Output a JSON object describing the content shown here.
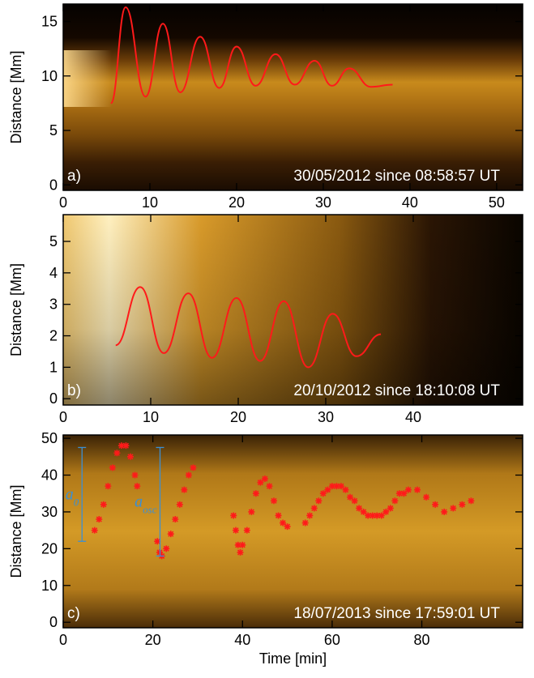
{
  "chart_data": [
    {
      "type": "line",
      "panel_label": "a)",
      "annotation": "30/05/2012 since 08:58:57 UT",
      "ylabel": "Distance [Mm]",
      "xlim": [
        0,
        53
      ],
      "ylim": [
        -0.5,
        16.6
      ],
      "xticks": [
        0,
        10,
        20,
        30,
        40,
        50
      ],
      "yticks": [
        0,
        5,
        10,
        15
      ],
      "series": [
        {
          "color": "#ff1a1a",
          "x": [
            5.5,
            7.2,
            9.5,
            11.5,
            13.5,
            15.8,
            18,
            20,
            22.2,
            24.5,
            26.7,
            29,
            31,
            33,
            35.5,
            38
          ],
          "values": [
            7.5,
            16.3,
            8.1,
            14.8,
            8.5,
            13.6,
            8.9,
            12.7,
            9.1,
            12,
            9.2,
            11.4,
            9.1,
            10.7,
            9,
            9.2
          ]
        }
      ]
    },
    {
      "type": "line",
      "panel_label": "b)",
      "annotation": "20/10/2012 since 18:10:08 UT",
      "ylabel": "Distance [Mm]",
      "xlim": [
        0,
        52.5
      ],
      "ylim": [
        -0.2,
        5.85
      ],
      "xticks": [
        0,
        10,
        20,
        30,
        40
      ],
      "yticks": [
        0,
        1,
        2,
        3,
        4,
        5
      ],
      "series": [
        {
          "color": "#ff1a1a",
          "x": [
            6,
            8.8,
            11.5,
            14.3,
            17,
            19.8,
            22.5,
            25.2,
            28,
            30.8,
            33.5,
            36.3
          ],
          "values": [
            1.7,
            3.55,
            1.45,
            3.35,
            1.3,
            3.2,
            1.2,
            3.1,
            1.0,
            2.7,
            1.35,
            2.05
          ]
        }
      ]
    },
    {
      "type": "scatter",
      "panel_label": "c)",
      "annotation": "18/07/2013 since 17:59:01 UT",
      "ylabel": "Distance [Mm]",
      "xlabel": "Time [min]",
      "xlim": [
        0,
        102.5
      ],
      "ylim": [
        -1.5,
        50.9
      ],
      "xticks": [
        0,
        20,
        40,
        60,
        80
      ],
      "yticks": [
        0,
        10,
        20,
        30,
        40,
        50
      ],
      "series": [
        {
          "color": "#ff1a1a",
          "x": [
            7,
            8,
            9,
            10,
            11,
            12,
            13,
            14,
            15,
            16,
            16.5,
            21,
            21.5,
            22,
            23,
            24,
            25,
            26,
            27,
            28,
            29,
            38,
            38.5,
            39,
            39.5,
            40,
            41,
            42,
            43,
            44,
            45,
            46,
            47,
            48,
            49,
            50,
            54,
            55,
            56,
            57,
            58,
            59,
            60,
            61,
            62,
            63,
            64,
            65,
            66,
            67,
            68,
            69,
            70,
            71,
            72,
            73,
            74,
            75,
            76,
            77,
            79,
            81,
            83,
            85,
            87,
            89,
            91
          ],
          "values": [
            25,
            28,
            32,
            37,
            42,
            46,
            48,
            48,
            45,
            40,
            37,
            22,
            19,
            18,
            20,
            24,
            28,
            32,
            36,
            40,
            42,
            29,
            25,
            21,
            19,
            21,
            25,
            30,
            35,
            38,
            39,
            37,
            33,
            29,
            27,
            26,
            27,
            29,
            31,
            33,
            35,
            36,
            37,
            37,
            37,
            36,
            34,
            33,
            31,
            30,
            29,
            29,
            29,
            29,
            30,
            31,
            33,
            35,
            35,
            36,
            36,
            34,
            32,
            30,
            31,
            32,
            33
          ]
        }
      ],
      "annotations": [
        {
          "text": "a",
          "sub": "0",
          "color": "#3b8fd4",
          "x": 4.2,
          "y": [
            22,
            47.5
          ]
        },
        {
          "text": "a",
          "sub": "osc",
          "color": "#3b8fd4",
          "x": 21.6,
          "y": [
            18,
            47.5
          ]
        }
      ]
    }
  ]
}
